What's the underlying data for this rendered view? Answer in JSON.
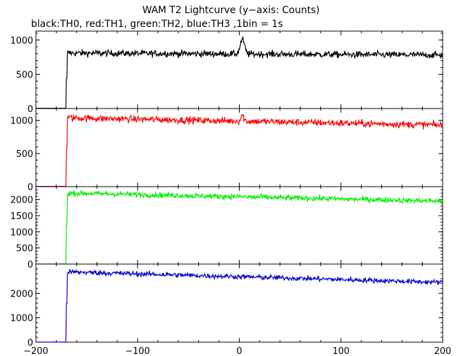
{
  "title": "WAM T2 Lightcurve (y−axis: Counts)",
  "subtitle": "black:TH0, red:TH1, green:TH2, blue:TH3 ,1bin = 1s",
  "chart_data": {
    "type": "line",
    "x": {
      "range": [
        -200,
        200
      ],
      "ticks": [
        -200,
        -100,
        0,
        100,
        200
      ],
      "tick_labels": [
        "−200",
        "−100",
        "0",
        "100",
        "200"
      ]
    },
    "panels": [
      {
        "name": "TH0",
        "color": "#000000",
        "ylim": [
          0,
          1130
        ],
        "ticks": [
          0,
          500,
          1000
        ],
        "tick_labels": [
          "0",
          "500",
          "1000"
        ],
        "profile": {
          "pre_level": 0,
          "onset_x": -169,
          "start_level": 810,
          "end_level": 780,
          "noise": 35,
          "peak": {
            "x": 3,
            "height": 210,
            "width": 3
          }
        }
      },
      {
        "name": "TH1",
        "color": "#ff0000",
        "ylim": [
          0,
          1180
        ],
        "ticks": [
          0,
          500,
          1000
        ],
        "tick_labels": [
          "0",
          "500",
          "1000"
        ],
        "profile": {
          "pre_level": 0,
          "onset_x": -169,
          "start_level": 1040,
          "end_level": 930,
          "noise": 38,
          "peak": {
            "x": 3,
            "height": 90,
            "width": 2
          }
        }
      },
      {
        "name": "TH2",
        "color": "#00ee00",
        "ylim": [
          0,
          2400
        ],
        "ticks": [
          0,
          500,
          1000,
          1500,
          2000
        ],
        "tick_labels": [
          "0",
          "500",
          "1000",
          "1500",
          "2000"
        ],
        "profile": {
          "pre_level": 0,
          "onset_x": -169,
          "start_level": 2200,
          "end_level": 1950,
          "noise": 60
        }
      },
      {
        "name": "TH3",
        "color": "#0000cc",
        "ylim": [
          0,
          3200
        ],
        "ticks": [
          0,
          1000,
          2000
        ],
        "tick_labels": [
          "0",
          "1000",
          "2000"
        ],
        "profile": {
          "pre_level": 0,
          "onset_x": -169,
          "start_level": 2880,
          "end_level": 2450,
          "noise": 75
        }
      }
    ]
  }
}
